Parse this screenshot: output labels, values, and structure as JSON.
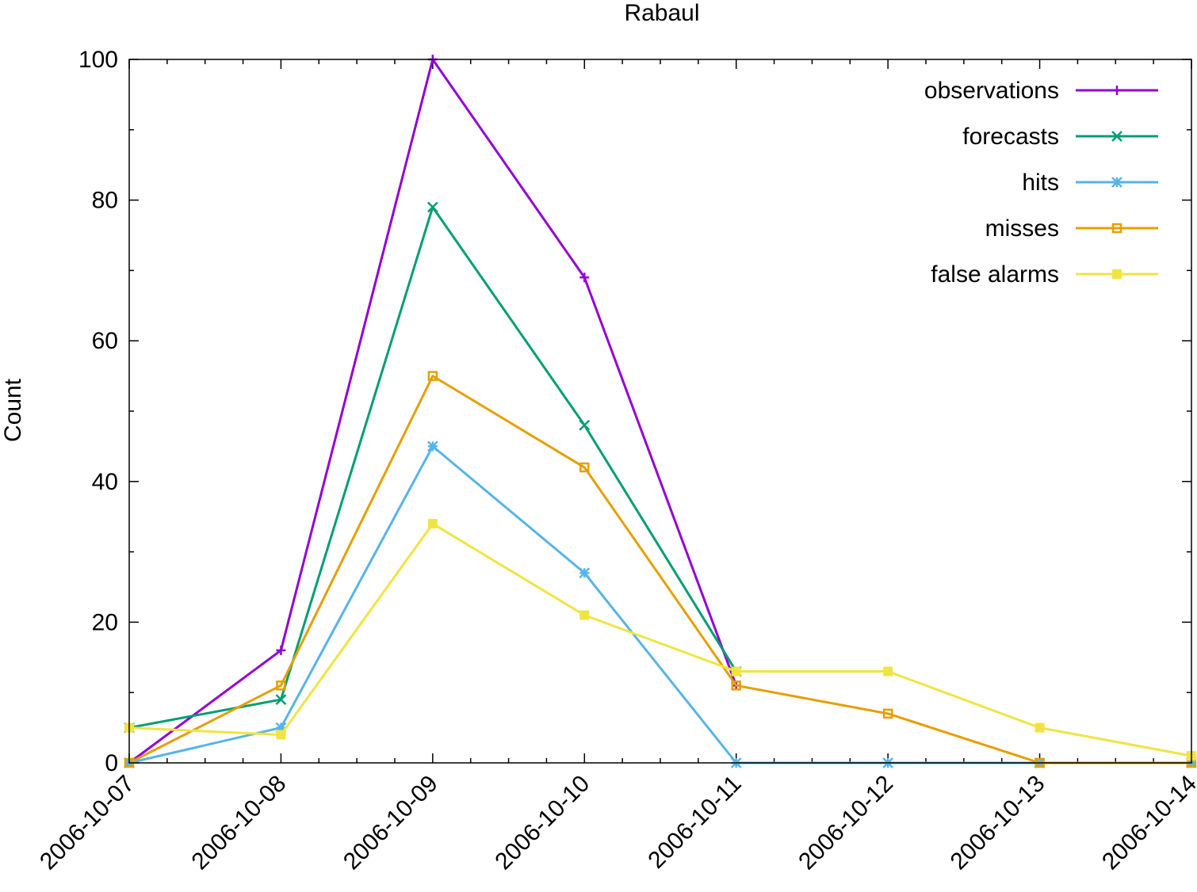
{
  "chart_data": {
    "type": "line",
    "title": "Rabaul",
    "xlabel": "",
    "ylabel": "Count",
    "x": [
      "2006-10-07",
      "2006-10-08",
      "2006-10-09",
      "2006-10-10",
      "2006-10-11",
      "2006-10-12",
      "2006-10-13",
      "2006-10-14"
    ],
    "ylim": [
      0,
      100
    ],
    "yticks": [
      0,
      20,
      40,
      60,
      80,
      100
    ],
    "grid": false,
    "legend_position": "top-right",
    "series": [
      {
        "name": "observations",
        "color": "#9400d3",
        "marker": "plus",
        "points": [
          [
            "2006-10-07",
            0
          ],
          [
            "2006-10-08",
            16
          ],
          [
            "2006-10-09",
            100
          ],
          [
            "2006-10-10",
            69
          ],
          [
            "2006-10-11",
            11
          ]
        ]
      },
      {
        "name": "forecasts",
        "color": "#009e73",
        "marker": "cross",
        "points": [
          [
            "2006-10-07",
            5
          ],
          [
            "2006-10-08",
            9
          ],
          [
            "2006-10-09",
            79
          ],
          [
            "2006-10-10",
            48
          ],
          [
            "2006-10-11",
            13
          ]
        ]
      },
      {
        "name": "hits",
        "color": "#56b4e9",
        "marker": "star",
        "points": [
          [
            "2006-10-07",
            0
          ],
          [
            "2006-10-08",
            5
          ],
          [
            "2006-10-09",
            45
          ],
          [
            "2006-10-10",
            27
          ],
          [
            "2006-10-11",
            0
          ],
          [
            "2006-10-12",
            0
          ],
          [
            "2006-10-13",
            0
          ],
          [
            "2006-10-14",
            0
          ]
        ]
      },
      {
        "name": "misses",
        "color": "#e69f00",
        "marker": "open-square",
        "points": [
          [
            "2006-10-07",
            0
          ],
          [
            "2006-10-08",
            11
          ],
          [
            "2006-10-09",
            55
          ],
          [
            "2006-10-10",
            42
          ],
          [
            "2006-10-11",
            11
          ],
          [
            "2006-10-12",
            7
          ],
          [
            "2006-10-13",
            0
          ],
          [
            "2006-10-14",
            0
          ]
        ]
      },
      {
        "name": "false alarms",
        "color": "#f0e442",
        "marker": "filled-square",
        "points": [
          [
            "2006-10-07",
            5
          ],
          [
            "2006-10-08",
            4
          ],
          [
            "2006-10-09",
            34
          ],
          [
            "2006-10-10",
            21
          ],
          [
            "2006-10-11",
            13
          ],
          [
            "2006-10-12",
            13
          ],
          [
            "2006-10-13",
            5
          ],
          [
            "2006-10-14",
            1
          ]
        ]
      }
    ]
  }
}
